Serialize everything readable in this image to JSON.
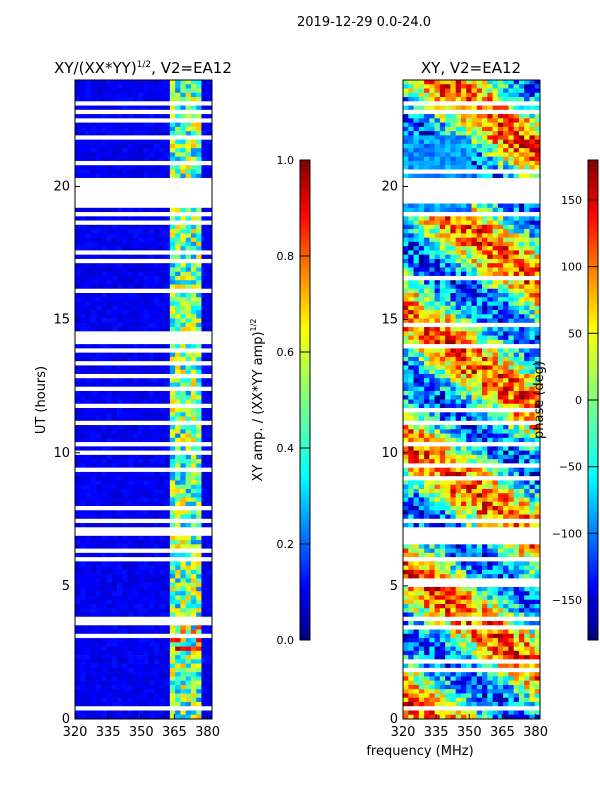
{
  "suptitle": "2019-12-29 0.0-24.0",
  "colors": {
    "jet": [
      "#000080",
      "#0000ff",
      "#0080ff",
      "#00ffff",
      "#80ff80",
      "#ffff00",
      "#ff8000",
      "#ff0000",
      "#800000"
    ],
    "gap": "#ffffff",
    "axis": "#000000"
  },
  "chart_data": [
    {
      "type": "heatmap",
      "title_main": "XY/(XX*YY)",
      "title_sup": "1/2",
      "title_tail": ", V2=EA12",
      "xlabel": "",
      "ylabel": "UT (hours)",
      "xlim": [
        320,
        382
      ],
      "ylim": [
        0,
        24
      ],
      "xticks": [
        320,
        335,
        350,
        365,
        380
      ],
      "yticks": [
        0,
        5,
        10,
        15,
        20
      ],
      "gaps_hours": [
        [
          19.3,
          20.3
        ],
        [
          6.9,
          7.2
        ],
        [
          7.3,
          7.45
        ],
        [
          0.3,
          0.45
        ],
        [
          23.05,
          23.15
        ],
        [
          22.75,
          22.85
        ],
        [
          11.1,
          11.2
        ]
      ],
      "active_band_mhz": [
        364,
        378
      ],
      "colorbar": {
        "label_main": "XY amp. / (XX*YY amp)",
        "label_sup": "1/2",
        "range": [
          0.0,
          1.0
        ],
        "ticks": [
          "0.0",
          "0.2",
          "0.4",
          "0.6",
          "0.8",
          "1.0"
        ]
      }
    },
    {
      "type": "heatmap",
      "title": "XY, V2=EA12",
      "xlabel": "frequency (MHz)",
      "ylabel": "",
      "xlim": [
        320,
        382
      ],
      "ylim": [
        0,
        24
      ],
      "xticks": [
        320,
        335,
        350,
        365,
        380
      ],
      "yticks": [
        0,
        5,
        10,
        15,
        20
      ],
      "gaps_hours": [
        [
          19.3,
          20.3
        ],
        [
          6.9,
          7.2
        ],
        [
          7.3,
          7.45
        ],
        [
          0.3,
          0.45
        ],
        [
          23.05,
          23.15
        ],
        [
          22.75,
          22.85
        ],
        [
          11.1,
          11.2
        ]
      ],
      "colorbar": {
        "label": "phase (deg)",
        "range": [
          -180,
          180
        ],
        "ticks": [
          "150",
          "100",
          "50",
          "0",
          "−50",
          "−100",
          "−150"
        ]
      }
    }
  ]
}
